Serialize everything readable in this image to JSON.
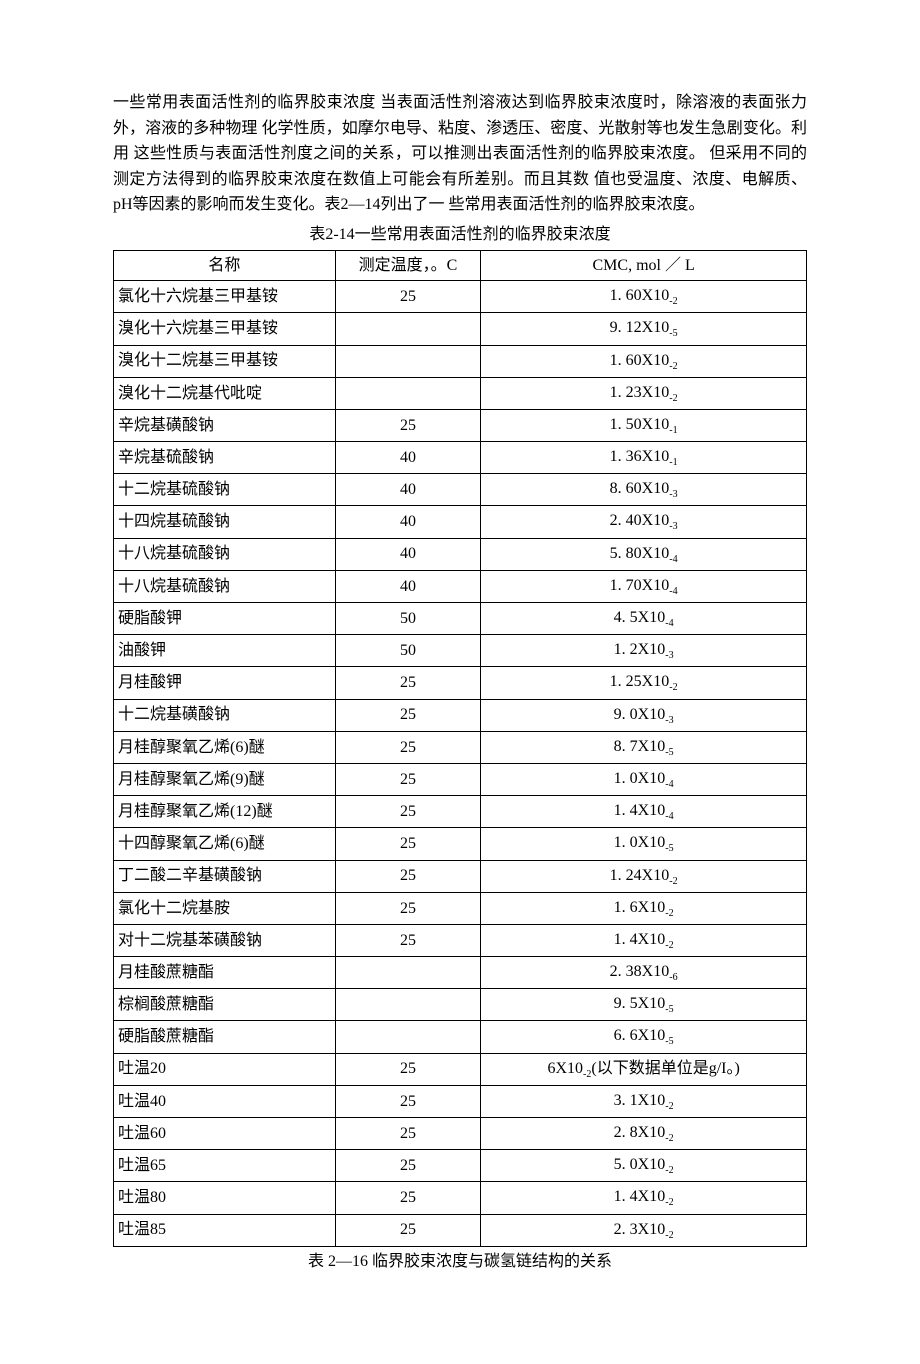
{
  "paragraph": "一些常用表面活性剂的临界胶束浓度 当表面活性剂溶液达到临界胶束浓度时，除溶液的表面张力外，溶液的多种物理 化学性质，如摩尔电导、粘度、渗透压、密度、光散射等也发生急剧变化。利用 这些性质与表面活性剂度之间的关系，可以推测出表面活性剂的临界胶束浓度。 但采用不同的测定方法得到的临界胶束浓度在数值上可能会有所差别。而且其数 值也受温度、浓度、电解质、pH等因素的影响而发生变化。表2—14列出了一 些常用表面活性剂的临界胶束浓度。",
  "table_caption": "表2-14一些常用表面活性剂的临界胶束浓度",
  "bottom_caption": "表 2—16 临界胶束浓度与碳氢链结构的关系",
  "table": {
    "columns": [
      "名称",
      "测定温度，。C",
      "CMC, mol ／ L"
    ],
    "rows": [
      {
        "name": "氯化十六烷基三甲基铵",
        "temp": "25",
        "cmc_mantissa": "1. 60X10",
        "cmc_exp": "-2"
      },
      {
        "name": "溴化十六烷基三甲基铵",
        "temp": "",
        "cmc_mantissa": "9. 12X10",
        "cmc_exp": "-5"
      },
      {
        "name": "溴化十二烷基三甲基铵",
        "temp": "",
        "cmc_mantissa": "1. 60X10",
        "cmc_exp": "-2"
      },
      {
        "name": "溴化十二烷基代吡啶",
        "temp": "",
        "cmc_mantissa": "1. 23X10",
        "cmc_exp": "-2"
      },
      {
        "name": "辛烷基磺酸钠",
        "temp": "25",
        "cmc_mantissa": "1. 50X10",
        "cmc_exp": "-1"
      },
      {
        "name": "辛烷基硫酸钠",
        "temp": "40",
        "cmc_mantissa": "1. 36X10",
        "cmc_exp": "-1"
      },
      {
        "name": "十二烷基硫酸钠",
        "temp": "40",
        "cmc_mantissa": "8. 60X10",
        "cmc_exp": "-3"
      },
      {
        "name": "十四烷基硫酸钠",
        "temp": "40",
        "cmc_mantissa": "2. 40X10",
        "cmc_exp": "-3"
      },
      {
        "name": "十八烷基硫酸钠",
        "temp": "40",
        "cmc_mantissa": "5. 80X10",
        "cmc_exp": "-4"
      },
      {
        "name": "十八烷基硫酸钠",
        "temp": "40",
        "cmc_mantissa": "1. 70X10",
        "cmc_exp": "-4"
      },
      {
        "name": "硬脂酸钾",
        "temp": "50",
        "cmc_mantissa": "4. 5X10",
        "cmc_exp": "-4"
      },
      {
        "name": "油酸钾",
        "temp": "50",
        "cmc_mantissa": "1. 2X10",
        "cmc_exp": "-3"
      },
      {
        "name": "月桂酸钾",
        "temp": "25",
        "cmc_mantissa": "1. 25X10",
        "cmc_exp": "-2"
      },
      {
        "name": "十二烷基磺酸钠",
        "temp": "25",
        "cmc_mantissa": "9. 0X10",
        "cmc_exp": "-3"
      },
      {
        "name": "月桂醇聚氧乙烯(6)醚",
        "temp": "25",
        "cmc_mantissa": "8. 7X10",
        "cmc_exp": "-5"
      },
      {
        "name": "月桂醇聚氧乙烯(9)醚",
        "temp": "25",
        "cmc_mantissa": "1. 0X10",
        "cmc_exp": "-4"
      },
      {
        "name": "月桂醇聚氧乙烯(12)醚",
        "temp": "25",
        "cmc_mantissa": "1. 4X10",
        "cmc_exp": "-4"
      },
      {
        "name": "十四醇聚氧乙烯(6)醚",
        "temp": "25",
        "cmc_mantissa": "1. 0X10",
        "cmc_exp": "-5"
      },
      {
        "name": "丁二酸二辛基磺酸钠",
        "temp": "25",
        "cmc_mantissa": "1. 24X10",
        "cmc_exp": "-2"
      },
      {
        "name": "氯化十二烷基胺",
        "temp": "25",
        "cmc_mantissa": "1. 6X10",
        "cmc_exp": "-2"
      },
      {
        "name": "对十二烷基苯磺酸钠",
        "temp": "25",
        "cmc_mantissa": "1. 4X10",
        "cmc_exp": "-2"
      },
      {
        "name": "月桂酸蔗糖酯",
        "temp": "",
        "cmc_mantissa": "2. 38X10",
        "cmc_exp": "-6"
      },
      {
        "name": "棕榈酸蔗糖酯",
        "temp": "",
        "cmc_mantissa": "9. 5X10",
        "cmc_exp": "-5"
      },
      {
        "name": "硬脂酸蔗糖酯",
        "temp": "",
        "cmc_mantissa": "6.  6X10",
        "cmc_exp": "-5"
      },
      {
        "name": "吐温20",
        "temp": "25",
        "cmc_mantissa": "6X10",
        "cmc_exp": "-2",
        "cmc_suffix": "(以下数据单位是g/I。)"
      },
      {
        "name": "吐温40",
        "temp": "25",
        "cmc_mantissa": "3. 1X10",
        "cmc_exp": "-2"
      },
      {
        "name": "吐温60",
        "temp": "25",
        "cmc_mantissa": "2. 8X10",
        "cmc_exp": "-2"
      },
      {
        "name": "吐温65",
        "temp": "25",
        "cmc_mantissa": "5. 0X10",
        "cmc_exp": "-2"
      },
      {
        "name": "吐温80",
        "temp": "25",
        "cmc_mantissa": "1. 4X10",
        "cmc_exp": "-2"
      },
      {
        "name": "吐温85",
        "temp": "25",
        "cmc_mantissa": "2. 3X10",
        "cmc_exp": "-2"
      }
    ]
  }
}
